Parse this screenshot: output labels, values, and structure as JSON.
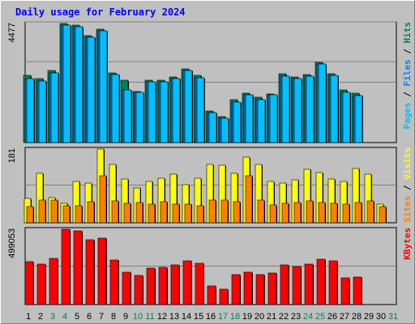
{
  "title": "Daily usage for February 2024",
  "legends": {
    "top": [
      {
        "text": "Pages",
        "color": "#00c0ff"
      },
      {
        "text": " / ",
        "color": "#000000"
      },
      {
        "text": "Files",
        "color": "#0080ff"
      },
      {
        "text": " / ",
        "color": "#000000"
      },
      {
        "text": "Hits",
        "color": "#00805c"
      }
    ],
    "middle": [
      {
        "text": "Sites",
        "color": "#ff8000"
      },
      {
        "text": " / ",
        "color": "#000000"
      },
      {
        "text": "Visits",
        "color": "#ffff00"
      }
    ],
    "bottom": [
      {
        "text": "KBytes",
        "color": "#ff0000"
      }
    ]
  },
  "chart_data": {
    "type": "bar",
    "title": "Daily usage for February 2024",
    "days": [
      1,
      2,
      3,
      4,
      5,
      6,
      7,
      8,
      9,
      10,
      11,
      12,
      13,
      14,
      15,
      16,
      17,
      18,
      19,
      20,
      21,
      22,
      23,
      24,
      25,
      26,
      27,
      28,
      29,
      30,
      31
    ],
    "weekend_days": [
      3,
      4,
      10,
      11,
      17,
      18,
      24,
      25,
      31
    ],
    "panels": [
      {
        "name": "hits-files-pages",
        "ymax_label": "4477",
        "ylim": [
          0,
          4477
        ],
        "series": [
          {
            "name": "Hits",
            "color": "#00805c",
            "values": [
              2540,
              2420,
              2710,
              4477,
              4430,
              4030,
              4250,
              2620,
              2350,
              1920,
              2330,
              2340,
              2480,
              2760,
              2530,
              1180,
              980,
              1610,
              1850,
              1700,
              1840,
              2600,
              2480,
              2570,
              3020,
              2590,
              1970,
              1850,
              null,
              null,
              null
            ]
          },
          {
            "name": "Files",
            "color": "#0080ff",
            "values": [
              2420,
              2300,
              2620,
              4420,
              4350,
              3950,
              4200,
              2550,
              1980,
              1880,
              2270,
              2280,
              2420,
              2710,
              2430,
              1120,
              900,
              1520,
              1790,
              1600,
              1790,
              2500,
              2400,
              2500,
              2950,
              2520,
              1880,
              1780,
              null,
              null,
              null
            ]
          },
          {
            "name": "Pages",
            "color": "#00c0ff",
            "values": [
              2420,
              2300,
              2620,
              4420,
              4350,
              3950,
              4200,
              2550,
              1980,
              1880,
              2270,
              2280,
              2420,
              2710,
              2430,
              1120,
              900,
              1520,
              1790,
              1600,
              1790,
              2500,
              2400,
              2500,
              2950,
              2520,
              1880,
              1780,
              null,
              null,
              null
            ]
          }
        ]
      },
      {
        "name": "visits-sites",
        "ymax_label": "181",
        "ylim": [
          0,
          181
        ],
        "series": [
          {
            "name": "Visits",
            "color": "#ffff00",
            "values": [
              59,
              122,
              62,
              47,
              101,
              98,
              181,
              144,
              107,
              86,
              102,
              109,
              119,
              94,
              110,
              143,
              142,
              121,
              161,
              144,
              102,
              98,
              106,
              131,
              123,
              107,
              102,
              134,
              120,
              45,
              null
            ]
          },
          {
            "name": "Sites",
            "color": "#ff8000",
            "values": [
              39,
              56,
              55,
              42,
              42,
              52,
              116,
              54,
              48,
              50,
              45,
              52,
              46,
              46,
              42,
              56,
              55,
              52,
              116,
              56,
              44,
              48,
              49,
              53,
              50,
              48,
              46,
              49,
              54,
              40,
              null
            ]
          }
        ]
      },
      {
        "name": "kbytes",
        "ymax_label": "499053",
        "ylim": [
          0,
          499053
        ],
        "series": [
          {
            "name": "KBytes",
            "color": "#ff0000",
            "values": [
              283000,
              268000,
              306000,
              499053,
              487000,
              429000,
              442000,
              296000,
              214000,
              195000,
              243000,
              249000,
              265000,
              289000,
              271000,
              123000,
              101000,
              196000,
              213000,
              201000,
              208000,
              264000,
              253000,
              268000,
              302000,
              288000,
              177000,
              183000,
              null,
              null,
              null
            ]
          }
        ]
      }
    ]
  }
}
